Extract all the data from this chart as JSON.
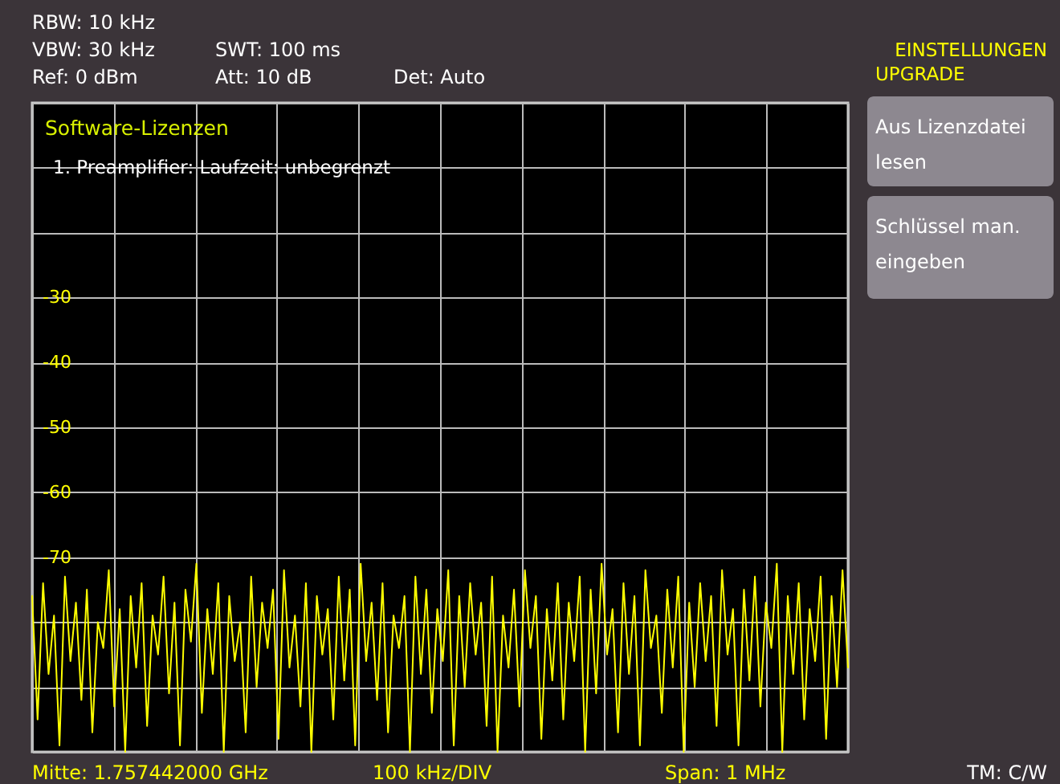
{
  "chart_data": {
    "type": "line",
    "annotations": [
      "RBW: 10 kHz",
      "VBW: 30 kHz",
      "SWT: 100 ms",
      "Ref: 0 dBm",
      "Att: 10 dB",
      "Det: Auto",
      "EINSTELLUNGEN",
      "UPGRADE",
      "Software-Lizenzen",
      "1. Preamplifier: Laufzeit: unbegrenzt",
      "Aus Lizenzdatei",
      "lesen",
      "Schlüssel man.",
      "eingeben",
      "Mitte: 1.757442000 GHz",
      "100 kHz/DIV",
      "Span: 1 MHz",
      "TM: C/W"
    ],
    "categories": [
      null,
      null,
      null,
      null,
      null,
      null,
      null,
      null,
      null,
      null,
      null,
      null,
      null,
      null,
      null,
      null,
      null,
      null,
      null,
      null,
      null,
      null,
      null,
      null,
      null,
      null,
      null,
      null,
      null,
      null,
      null,
      null,
      null,
      null,
      null,
      null,
      null,
      null,
      null,
      null,
      null,
      null,
      null,
      null,
      null,
      null,
      null,
      null,
      null,
      null,
      null,
      null,
      null,
      null,
      null,
      null,
      null,
      null,
      null,
      null,
      null,
      null,
      null,
      null,
      null,
      null,
      null,
      null,
      null,
      null,
      null,
      null,
      null,
      null,
      null,
      null,
      null,
      null,
      null,
      null,
      null,
      null,
      null,
      null,
      null,
      null,
      null,
      null,
      null,
      null,
      null,
      null,
      null,
      null,
      null,
      null,
      null,
      null,
      null,
      null,
      null,
      null,
      null,
      null,
      null,
      null,
      null,
      null,
      null,
      null,
      null,
      null,
      null,
      null,
      null,
      null,
      null,
      null,
      null,
      null,
      null,
      null,
      null,
      null,
      null,
      null,
      null,
      null,
      null,
      null,
      null,
      null,
      null,
      null,
      null,
      null,
      null,
      null,
      null,
      null,
      null,
      null,
      null,
      null,
      null,
      null,
      null,
      null,
      null,
      null
    ],
    "series": [
      {
        "color": "#ffff00",
        "values": [
          -76,
          -95,
          -74,
          -88,
          -79,
          -99,
          -73,
          -86,
          -77,
          -92,
          -75,
          -97,
          -80,
          -84,
          -72,
          -93,
          -78,
          -100,
          -76,
          -87,
          -74,
          -96,
          -79,
          -85,
          -73,
          -91,
          -77,
          -99,
          -75,
          -83,
          -71,
          -94,
          -78,
          -88,
          -74,
          -100,
          -76,
          -86,
          -80,
          -97,
          -73,
          -90,
          -77,
          -84,
          -75,
          -98,
          -72,
          -87,
          -79,
          -93,
          -74,
          -100,
          -76,
          -85,
          -78,
          -95,
          -73,
          -89,
          -75,
          -99,
          -71,
          -86,
          -77,
          -92,
          -74,
          -97,
          -79,
          -84,
          -76,
          -100,
          -73,
          -88,
          -75,
          -94,
          -78,
          -86,
          -72,
          -99,
          -76,
          -90,
          -74,
          -85,
          -77,
          -96,
          -73,
          -100,
          -79,
          -87,
          -75,
          -93,
          -72,
          -84,
          -76,
          -98,
          -78,
          -89,
          -74,
          -95,
          -77,
          -86,
          -73,
          -100,
          -75,
          -91,
          -71,
          -85,
          -78,
          -97,
          -74,
          -88,
          -76,
          -99,
          -72,
          -84,
          -79,
          -94,
          -75,
          -87,
          -73,
          -100,
          -77,
          -90,
          -74,
          -86,
          -76,
          -96,
          -72,
          -85,
          -78,
          -99,
          -75,
          -89,
          -73,
          -93,
          -77,
          -84,
          -71,
          -100,
          -76,
          -88,
          -74,
          -95,
          -78,
          -86,
          -73,
          -98,
          -76,
          -90,
          -72,
          -87
        ]
      }
    ],
    "ylim": [
      -100,
      0
    ],
    "yticks": [
      {
        "value": 0,
        "label": null
      },
      {
        "value": -10,
        "label": null
      },
      {
        "value": -20,
        "label": null
      },
      -30,
      -40,
      -50,
      -60,
      -70,
      {
        "value": -80,
        "label": null
      },
      {
        "value": -90,
        "label": null
      },
      {
        "value": -100,
        "label": null
      }
    ],
    "grid": true,
    "tick_labels": "y",
    "line_style": "solid",
    "marker": "none"
  }
}
